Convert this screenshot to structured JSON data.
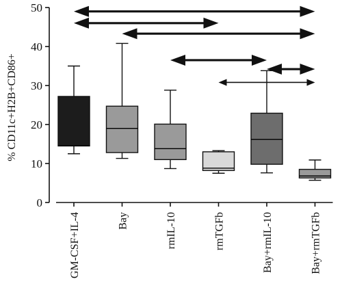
{
  "colors": {
    "axis": "#111111",
    "whisker": "#111111",
    "median": "#000000",
    "arrow": "#111111"
  },
  "chart_data": {
    "type": "box",
    "ylabel": "% CD11c+H2B+CD86+",
    "xlabel": "",
    "ylim": [
      0,
      50
    ],
    "yticks": [
      0,
      10,
      20,
      30,
      40,
      50
    ],
    "grid": false,
    "categories": [
      "GM-CSF+IL-4",
      "Bay",
      "rmIL-10",
      "rmTGFb",
      "Bay+rmIL-10",
      "Bay+rmTGFb"
    ],
    "boxes": [
      {
        "label": "GM-CSF+IL-4",
        "min": 12.5,
        "q1": 14.5,
        "median": 14.5,
        "q3": 27.2,
        "max": 35.0,
        "fill": "#1c1c1c"
      },
      {
        "label": "Bay",
        "min": 11.3,
        "q1": 12.8,
        "median": 19.0,
        "q3": 24.7,
        "max": 40.8,
        "fill": "#9a9a9a"
      },
      {
        "label": "rmIL-10",
        "min": 8.7,
        "q1": 11.0,
        "median": 13.8,
        "q3": 20.1,
        "max": 28.8,
        "fill": "#9a9a9a"
      },
      {
        "label": "rmTGFb",
        "min": 7.5,
        "q1": 8.2,
        "median": 8.8,
        "q3": 13.0,
        "max": 13.3,
        "fill": "#d9d9d9"
      },
      {
        "label": "Bay+rmIL-10",
        "min": 7.6,
        "q1": 9.8,
        "median": 16.2,
        "q3": 22.9,
        "max": 33.8,
        "fill": "#6d6d6d"
      },
      {
        "label": "Bay+rmTGFb",
        "min": 5.7,
        "q1": 6.3,
        "median": 6.8,
        "q3": 8.5,
        "max": 10.9,
        "fill": "#9a9a9a"
      }
    ],
    "comparisons": [
      {
        "from": "GM-CSF+IL-4",
        "to": "Bay+rmTGFb",
        "y": 49.0,
        "heads": "both",
        "bold": true
      },
      {
        "from": "GM-CSF+IL-4",
        "to": "rmTGFb",
        "y": 46.0,
        "heads": "both",
        "bold": true
      },
      {
        "from": "Bay",
        "to": "Bay+rmTGFb",
        "y": 43.3,
        "heads": "both",
        "bold": true
      },
      {
        "from": "rmIL-10",
        "to": "Bay+rmIL-10",
        "y": 36.5,
        "heads": "both",
        "bold": true
      },
      {
        "from": "Bay+rmIL-10",
        "to": "Bay+rmTGFb",
        "y": 34.2,
        "heads": "both",
        "bold": true
      },
      {
        "from": "rmTGFb",
        "to": "Bay+rmTGFb",
        "y": 30.8,
        "heads": "both",
        "bold": false
      }
    ]
  }
}
